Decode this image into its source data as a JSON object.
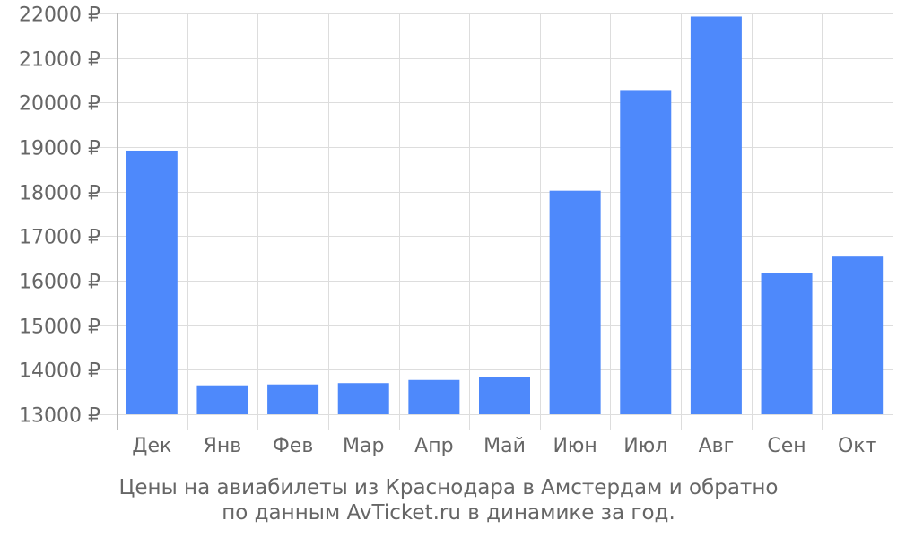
{
  "chart_data": {
    "type": "bar",
    "categories": [
      "Дек",
      "Янв",
      "Фев",
      "Мар",
      "Апр",
      "Май",
      "Июн",
      "Июл",
      "Авг",
      "Сен",
      "Окт"
    ],
    "values": [
      18920,
      13650,
      13670,
      13700,
      13770,
      13830,
      18020,
      20280,
      21930,
      16170,
      16540
    ],
    "ylim": [
      13000,
      22000
    ],
    "yticks": [
      13000,
      14000,
      15000,
      16000,
      17000,
      18000,
      19000,
      20000,
      21000,
      22000
    ],
    "ytick_labels": [
      "13000 ₽",
      "14000 ₽",
      "15000 ₽",
      "16000 ₽",
      "17000 ₽",
      "18000 ₽",
      "19000 ₽",
      "20000 ₽",
      "21000 ₽",
      "22000 ₽"
    ],
    "grid": true,
    "bar_color": "#4e89fb",
    "grid_color": "#dddddd",
    "text_color": "#666666"
  },
  "caption": {
    "line1": "Цены на авиабилеты из Краснодара в Амстердам и обратно",
    "line2": "по данным AvTicket.ru в динамике за год."
  }
}
